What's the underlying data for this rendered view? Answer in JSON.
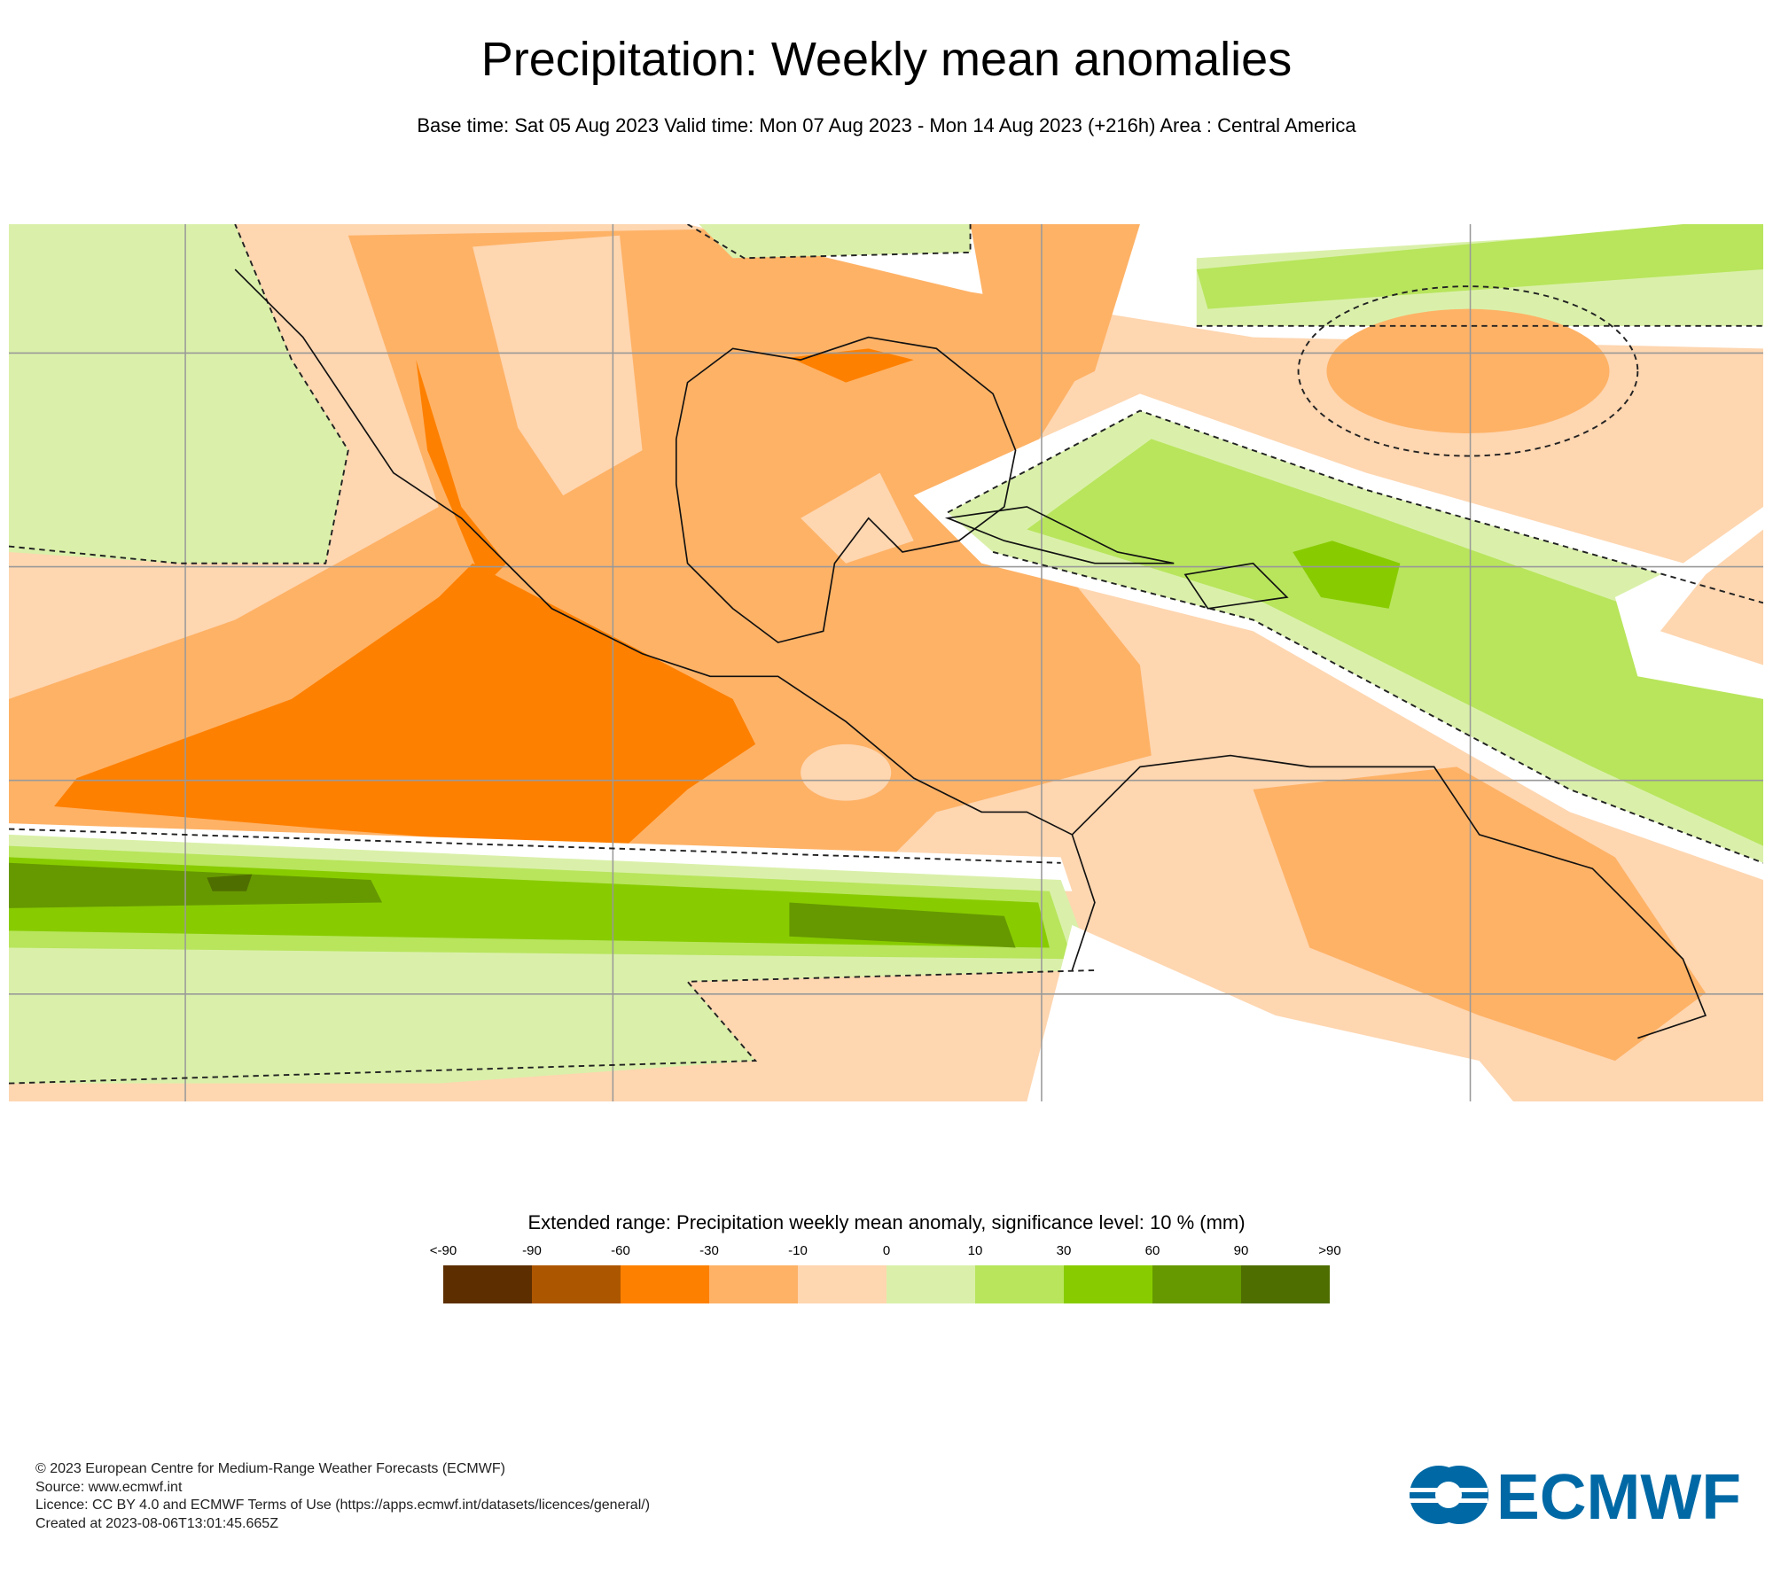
{
  "header": {
    "title": "Precipitation: Weekly mean anomalies",
    "subtitle": "Base time: Sat 05 Aug 2023 Valid time: Mon 07 Aug 2023 - Mon 14 Aug 2023 (+216h) Area : Central America"
  },
  "legend": {
    "title": "Extended range: Precipitation weekly mean anomaly, significance level: 10 % (mm)",
    "labels": [
      "<-90",
      "-90",
      "-60",
      "-30",
      "-10",
      "0",
      "10",
      "30",
      "60",
      "90",
      ">90"
    ],
    "colors": [
      "#5c2e00",
      "#ad5600",
      "#fe8000",
      "#feb266",
      "#fed6b0",
      "#daf0aa",
      "#b8e55c",
      "#88cc00",
      "#669900",
      "#4f6e00"
    ]
  },
  "footer": {
    "lines": [
      "© 2023 European Centre for Medium-Range Weather Forecasts (ECMWF)",
      "Source: www.ecmwf.int",
      "Licence: CC BY 4.0 and ECMWF Terms of Use (https://apps.ecmwf.int/datasets/licences/general/)",
      "Created at 2023-08-06T13:01:45.665Z"
    ],
    "logo_text": "ECMWF",
    "logo_color": "#0069a5"
  }
}
